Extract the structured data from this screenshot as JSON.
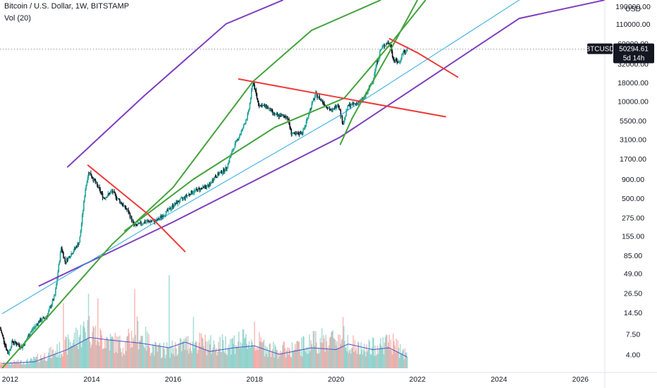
{
  "header": {
    "title": "Bitcoin / U.S. Dollar, 1W, BITSTAMP",
    "indicator": "Vol (20)"
  },
  "chart_data": {
    "type": "candlestick",
    "symbol": "BTCUSD",
    "scale": "log",
    "currency": "USD",
    "ylim": [
      2.6,
      230000
    ],
    "xlim": [
      2011.75,
      2026.6
    ],
    "y_ticks": [
      190000,
      110000,
      60000,
      32000,
      18000,
      10000,
      5500,
      3100,
      1700,
      900,
      500,
      275,
      155,
      85,
      49,
      26.5,
      14.5,
      7.5,
      4.0
    ],
    "y_tick_labels": [
      "190000.00",
      "110000.00",
      "60000.00",
      "32000.00",
      "18000.00",
      "10000.00",
      "5500.00",
      "3100.00",
      "1700.00",
      "900.00",
      "500.00",
      "275.00",
      "155.00",
      "85.00",
      "49.00",
      "26.50",
      "14.50",
      "7.50",
      "4.00"
    ],
    "x_ticks": [
      "2012",
      "2014",
      "2016",
      "2018",
      "2020",
      "2022",
      "2024",
      "2026"
    ],
    "current_price": {
      "label": "BTCUSD",
      "value": "50294.61",
      "countdown": "5d 14h"
    },
    "price_path": [
      [
        2011.75,
        9
      ],
      [
        2011.95,
        4
      ],
      [
        2012.05,
        6
      ],
      [
        2012.3,
        5
      ],
      [
        2012.5,
        8
      ],
      [
        2012.7,
        11
      ],
      [
        2012.9,
        13
      ],
      [
        2013.1,
        25
      ],
      [
        2013.25,
        110
      ],
      [
        2013.35,
        70
      ],
      [
        2013.5,
        90
      ],
      [
        2013.7,
        130
      ],
      [
        2013.85,
        700
      ],
      [
        2013.93,
        1150
      ],
      [
        2014.1,
        800
      ],
      [
        2014.3,
        500
      ],
      [
        2014.5,
        620
      ],
      [
        2014.7,
        450
      ],
      [
        2014.9,
        330
      ],
      [
        2015.05,
        210
      ],
      [
        2015.3,
        240
      ],
      [
        2015.6,
        250
      ],
      [
        2015.85,
        330
      ],
      [
        2016.0,
        400
      ],
      [
        2016.45,
        600
      ],
      [
        2016.6,
        650
      ],
      [
        2016.9,
        750
      ],
      [
        2017.0,
        950
      ],
      [
        2017.3,
        1250
      ],
      [
        2017.5,
        2500
      ],
      [
        2017.7,
        4200
      ],
      [
        2017.85,
        7000
      ],
      [
        2017.96,
        18500
      ],
      [
        2018.1,
        9000
      ],
      [
        2018.3,
        8500
      ],
      [
        2018.5,
        6500
      ],
      [
        2018.8,
        6300
      ],
      [
        2018.9,
        3800
      ],
      [
        2019.0,
        3500
      ],
      [
        2019.2,
        4000
      ],
      [
        2019.35,
        7500
      ],
      [
        2019.5,
        12500
      ],
      [
        2019.7,
        9500
      ],
      [
        2019.9,
        7300
      ],
      [
        2020.05,
        9500
      ],
      [
        2020.17,
        5000
      ],
      [
        2020.3,
        8800
      ],
      [
        2020.5,
        9300
      ],
      [
        2020.7,
        11000
      ],
      [
        2020.9,
        19000
      ],
      [
        2021.0,
        33000
      ],
      [
        2021.1,
        50000
      ],
      [
        2021.25,
        62000
      ],
      [
        2021.35,
        56000
      ],
      [
        2021.4,
        37000
      ],
      [
        2021.55,
        33000
      ],
      [
        2021.65,
        47000
      ],
      [
        2021.72,
        44000
      ],
      [
        2021.75,
        50294.61
      ]
    ],
    "volume_path": [
      [
        2011.75,
        0.05
      ],
      [
        2012.5,
        0.08
      ],
      [
        2013.3,
        0.22
      ],
      [
        2013.9,
        0.45
      ],
      [
        2014.2,
        0.35
      ],
      [
        2014.8,
        0.25
      ],
      [
        2015.1,
        0.42
      ],
      [
        2015.6,
        0.2
      ],
      [
        2016.0,
        0.22
      ],
      [
        2016.5,
        0.3
      ],
      [
        2017.0,
        0.25
      ],
      [
        2017.6,
        0.3
      ],
      [
        2018.0,
        0.3
      ],
      [
        2018.5,
        0.2
      ],
      [
        2019.0,
        0.22
      ],
      [
        2019.5,
        0.3
      ],
      [
        2020.2,
        0.35
      ],
      [
        2020.6,
        0.2
      ],
      [
        2021.0,
        0.25
      ],
      [
        2021.3,
        0.3
      ],
      [
        2021.75,
        0.15
      ]
    ],
    "volume_spikes": [
      [
        2013.3,
        0.7
      ],
      [
        2013.93,
        0.8
      ],
      [
        2014.15,
        0.75
      ],
      [
        2015.05,
        0.85
      ],
      [
        2015.9,
        1.0
      ],
      [
        2016.5,
        0.55
      ],
      [
        2018.0,
        0.5
      ],
      [
        2019.45,
        0.4
      ],
      [
        2020.17,
        0.55
      ],
      [
        2021.4,
        0.35
      ]
    ],
    "volume_ma": [
      [
        2011.8,
        0.05
      ],
      [
        2012.6,
        0.07
      ],
      [
        2013.4,
        0.2
      ],
      [
        2013.95,
        0.33
      ],
      [
        2014.5,
        0.3
      ],
      [
        2015.2,
        0.27
      ],
      [
        2015.9,
        0.22
      ],
      [
        2016.3,
        0.28
      ],
      [
        2016.9,
        0.18
      ],
      [
        2017.5,
        0.22
      ],
      [
        2018.0,
        0.24
      ],
      [
        2018.6,
        0.15
      ],
      [
        2019.4,
        0.22
      ],
      [
        2020.0,
        0.2
      ],
      [
        2020.3,
        0.26
      ],
      [
        2020.9,
        0.2
      ],
      [
        2021.3,
        0.22
      ],
      [
        2021.75,
        0.12
      ]
    ],
    "trendlines": [
      {
        "color": "#7e3fbf",
        "points": [
          [
            2013.4,
            1300
          ],
          [
            2015.3,
            12000
          ],
          [
            2017.3,
            110000
          ],
          [
            2018.7,
            230000
          ]
        ]
      },
      {
        "color": "#7e3fbf",
        "points": [
          [
            2012.7,
            33
          ],
          [
            2016.0,
            240
          ],
          [
            2020.1,
            3300
          ],
          [
            2024.5,
            130000
          ],
          [
            2026.6,
            230000
          ]
        ]
      },
      {
        "color": "#29a7e0",
        "points": [
          [
            2011.8,
            14
          ],
          [
            2016.0,
            330
          ],
          [
            2020.1,
            6500
          ],
          [
            2024.5,
            230000
          ]
        ]
      },
      {
        "color": "#43a33b",
        "points": [
          [
            2011.8,
            2.6
          ],
          [
            2014.5,
            120
          ],
          [
            2016.0,
            700
          ],
          [
            2017.96,
            18500
          ],
          [
            2019.4,
            90000
          ],
          [
            2021.1,
            230000
          ]
        ]
      },
      {
        "color": "#43a33b",
        "points": [
          [
            2014.8,
            180
          ],
          [
            2016.5,
            900
          ],
          [
            2018.5,
            4500
          ],
          [
            2020.2,
            11000
          ],
          [
            2021.3,
            56000
          ],
          [
            2022.2,
            230000
          ]
        ]
      },
      {
        "color": "#43a33b",
        "points": [
          [
            2020.1,
            2600
          ],
          [
            2020.4,
            6000
          ],
          [
            2021.3,
            45000
          ],
          [
            2022.0,
            230000
          ]
        ]
      },
      {
        "color": "#ee3a3a",
        "points": [
          [
            2013.9,
            1400
          ],
          [
            2015.4,
            300
          ],
          [
            2016.3,
            95
          ]
        ]
      },
      {
        "color": "#ee3a3a",
        "points": [
          [
            2017.6,
            20000
          ],
          [
            2019.8,
            12000
          ],
          [
            2022.7,
            6200
          ]
        ]
      },
      {
        "color": "#ee3a3a",
        "points": [
          [
            2021.3,
            70000
          ],
          [
            2022.0,
            45000
          ],
          [
            2023.0,
            21000
          ]
        ]
      }
    ],
    "colors": {
      "up": "#26a69a",
      "down": "#131722",
      "vol_up": "#26a69a",
      "vol_down": "#ef5350",
      "ma": "#4a56c6",
      "price_tag": "#131722"
    }
  }
}
